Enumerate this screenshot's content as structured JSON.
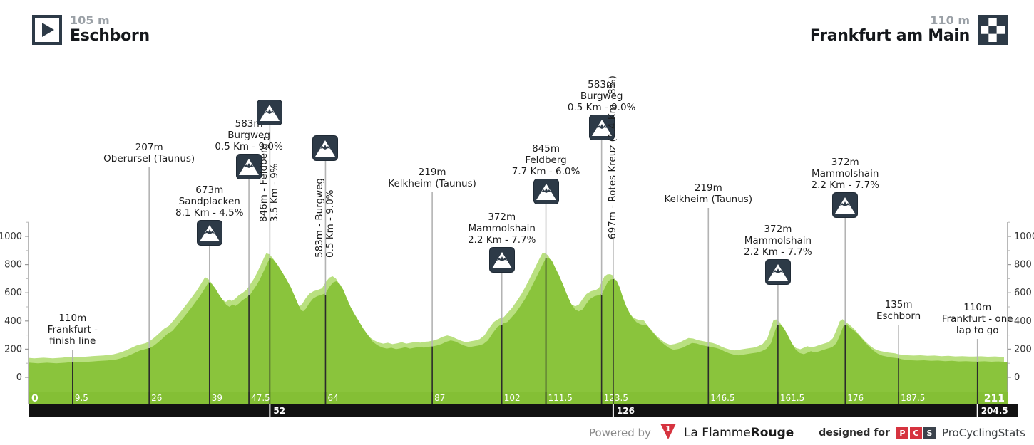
{
  "header": {
    "start": {
      "elevation": "105 m",
      "name": "Eschborn"
    },
    "finish": {
      "elevation": "110 m",
      "name": "Frankfurt am Main"
    }
  },
  "footer": {
    "powered_by": "Powered by",
    "lfr_regular": "La Flamme",
    "lfr_bold": "Rouge",
    "lfr_flag_digit": "1",
    "designed_for": "designed for",
    "pcs_letters": [
      "P",
      "C",
      "S"
    ],
    "pcs_name": "ProCyclingStats"
  },
  "colors": {
    "profile_green": "#8ac43c",
    "profile_light_green": "#b9e080",
    "band_green": "#84bf35",
    "band_black": "#121212",
    "icon_navy": "#2d3a47",
    "marker_gray": "#b3b3b3",
    "marker_dark": "#2b2b2b",
    "axis_gray": "#999999",
    "axis_text": "#333333",
    "accent_red": "#d6333f"
  },
  "chart_data": {
    "type": "area",
    "x_unit": "km",
    "y_unit": "m",
    "xlim": [
      0,
      211
    ],
    "ylim": [
      -100,
      1100
    ],
    "y_ticks": [
      0,
      200,
      400,
      600,
      800,
      1000
    ],
    "x_ticks_km": [
      0,
      9.5,
      26,
      39,
      47.5,
      64,
      87,
      102,
      111.5,
      123.5,
      146.5,
      161.5,
      176,
      187.5,
      211
    ],
    "lap_ticks_km": [
      52,
      126,
      204.5
    ],
    "start_label": "0",
    "end_label": "211",
    "markers": [
      {
        "km": 9.5,
        "type": "passage",
        "elevation": 110,
        "lines": [
          "110m",
          "Frankfurt -",
          "finish line"
        ]
      },
      {
        "km": 26,
        "type": "passage",
        "elevation": 207,
        "lines": [
          "207m",
          "Oberursel (Taunus)"
        ]
      },
      {
        "km": 39,
        "type": "climb",
        "elevation": 673,
        "lines": [
          "673m",
          "Sandplacken",
          "8.1 Km - 4.5%"
        ]
      },
      {
        "km": 47.5,
        "type": "climb",
        "elevation": 583,
        "lines": [
          "583m",
          "Burgweg",
          "0.5 Km - 9.0%"
        ]
      },
      {
        "km": 52,
        "type": "climb",
        "elevation": 846,
        "rotated": true,
        "lines": [
          "846m - Feldberg -",
          "3.5 Km - 9%"
        ]
      },
      {
        "km": 64,
        "type": "climb",
        "elevation": 583,
        "rotated": true,
        "lines": [
          "583m - Burgweg",
          "0.5 Km - 9.0%"
        ]
      },
      {
        "km": 87,
        "type": "passage",
        "elevation": 219,
        "lines": [
          "219m",
          "Kelkheim (Taunus)"
        ]
      },
      {
        "km": 102,
        "type": "climb",
        "elevation": 372,
        "lines": [
          "372m",
          "Mammolshain",
          "2.2 Km - 7.7%"
        ]
      },
      {
        "km": 111.5,
        "type": "climb",
        "elevation": 845,
        "lines": [
          "845m",
          "Feldberg",
          "7.7 Km - 6.0%"
        ]
      },
      {
        "km": 123.5,
        "type": "climb",
        "elevation": 583,
        "lines": [
          "583m",
          "Burgweg",
          "0.5 Km - 9.0%"
        ]
      },
      {
        "km": 126,
        "type": "climb",
        "elevation": 697,
        "rotated": true,
        "no_icon": true,
        "lines": [
          "697m - Rotes Kreuz (1.4 Km - 8%)"
        ]
      },
      {
        "km": 146.5,
        "type": "passage",
        "elevation": 219,
        "lines": [
          "219m",
          "Kelkheim (Taunus)"
        ]
      },
      {
        "km": 161.5,
        "type": "climb",
        "elevation": 372,
        "lines": [
          "372m",
          "Mammolshain",
          "2.2 Km - 7.7%"
        ]
      },
      {
        "km": 176,
        "type": "climb",
        "elevation": 372,
        "lines": [
          "372m",
          "Mammolshain",
          "2.2 Km - 7.7%"
        ]
      },
      {
        "km": 187.5,
        "type": "passage",
        "elevation": 135,
        "lines": [
          "135m",
          "Eschborn"
        ]
      },
      {
        "km": 204.5,
        "type": "passage",
        "elevation": 110,
        "lines": [
          "110m",
          "Frankfurt - one",
          "lap to go"
        ]
      }
    ],
    "profile": [
      [
        0,
        105
      ],
      [
        2,
        100
      ],
      [
        4,
        104
      ],
      [
        6,
        100
      ],
      [
        8,
        104
      ],
      [
        9.5,
        110
      ],
      [
        11,
        107
      ],
      [
        13,
        111
      ],
      [
        15,
        116
      ],
      [
        17,
        120
      ],
      [
        19,
        128
      ],
      [
        20,
        136
      ],
      [
        21,
        146
      ],
      [
        22,
        160
      ],
      [
        23,
        175
      ],
      [
        24,
        190
      ],
      [
        25,
        199
      ],
      [
        26,
        207
      ],
      [
        27,
        224
      ],
      [
        28,
        250
      ],
      [
        29,
        280
      ],
      [
        30,
        310
      ],
      [
        31,
        330
      ],
      [
        32,
        368
      ],
      [
        33,
        408
      ],
      [
        34,
        448
      ],
      [
        35,
        490
      ],
      [
        36,
        535
      ],
      [
        37,
        580
      ],
      [
        38,
        632
      ],
      [
        38.8,
        676
      ],
      [
        39.5,
        662
      ],
      [
        40.2,
        634
      ],
      [
        41,
        590
      ],
      [
        41.8,
        552
      ],
      [
        42.6,
        515
      ],
      [
        43.3,
        500
      ],
      [
        44,
        516
      ],
      [
        44.6,
        506
      ],
      [
        45.3,
        522
      ],
      [
        46,
        545
      ],
      [
        47,
        566
      ],
      [
        47.8,
        588
      ],
      [
        48.5,
        622
      ],
      [
        49.3,
        662
      ],
      [
        50,
        706
      ],
      [
        50.8,
        762
      ],
      [
        51.5,
        812
      ],
      [
        52,
        845
      ],
      [
        52.7,
        838
      ],
      [
        53.5,
        806
      ],
      [
        54.5,
        756
      ],
      [
        55.5,
        700
      ],
      [
        56.5,
        640
      ],
      [
        57.3,
        580
      ],
      [
        58,
        526
      ],
      [
        58.7,
        478
      ],
      [
        59.2,
        468
      ],
      [
        59.8,
        488
      ],
      [
        60.5,
        526
      ],
      [
        61.3,
        558
      ],
      [
        62.2,
        576
      ],
      [
        63.2,
        586
      ],
      [
        64,
        596
      ],
      [
        64.8,
        640
      ],
      [
        65.6,
        672
      ],
      [
        66.3,
        682
      ],
      [
        67,
        666
      ],
      [
        67.8,
        622
      ],
      [
        68.6,
        560
      ],
      [
        69.4,
        500
      ],
      [
        70.2,
        452
      ],
      [
        71.2,
        398
      ],
      [
        72.2,
        342
      ],
      [
        73.2,
        298
      ],
      [
        74.2,
        252
      ],
      [
        75.2,
        228
      ],
      [
        76.2,
        212
      ],
      [
        77.2,
        204
      ],
      [
        78.2,
        210
      ],
      [
        79.2,
        200
      ],
      [
        80.2,
        206
      ],
      [
        81.2,
        214
      ],
      [
        82.2,
        204
      ],
      [
        83.2,
        210
      ],
      [
        84.2,
        216
      ],
      [
        85.2,
        211
      ],
      [
        86.2,
        217
      ],
      [
        87,
        219
      ],
      [
        88,
        226
      ],
      [
        89,
        236
      ],
      [
        90,
        252
      ],
      [
        91,
        262
      ],
      [
        92,
        254
      ],
      [
        93,
        238
      ],
      [
        94,
        224
      ],
      [
        95,
        214
      ],
      [
        96,
        220
      ],
      [
        97,
        226
      ],
      [
        98,
        236
      ],
      [
        99,
        262
      ],
      [
        100,
        312
      ],
      [
        101,
        356
      ],
      [
        101.7,
        372
      ],
      [
        102.5,
        386
      ],
      [
        103.2,
        392
      ],
      [
        104,
        422
      ],
      [
        105,
        458
      ],
      [
        106,
        506
      ],
      [
        107,
        556
      ],
      [
        108,
        616
      ],
      [
        109,
        682
      ],
      [
        110,
        748
      ],
      [
        110.8,
        802
      ],
      [
        111.5,
        845
      ],
      [
        112.1,
        846
      ],
      [
        112.8,
        828
      ],
      [
        113.5,
        778
      ],
      [
        114.3,
        726
      ],
      [
        115.2,
        658
      ],
      [
        116.1,
        582
      ],
      [
        117,
        518
      ],
      [
        117.8,
        482
      ],
      [
        118.6,
        468
      ],
      [
        119.4,
        482
      ],
      [
        120.2,
        522
      ],
      [
        121,
        556
      ],
      [
        122,
        576
      ],
      [
        123,
        584
      ],
      [
        123.7,
        598
      ],
      [
        124.3,
        642
      ],
      [
        124.9,
        682
      ],
      [
        125.5,
        695
      ],
      [
        126.1,
        697
      ],
      [
        126.7,
        688
      ],
      [
        127.4,
        638
      ],
      [
        128.1,
        565
      ],
      [
        128.8,
        505
      ],
      [
        129.5,
        458
      ],
      [
        130.2,
        422
      ],
      [
        131,
        392
      ],
      [
        131.8,
        378
      ],
      [
        132.6,
        370
      ],
      [
        133.4,
        368
      ],
      [
        134.2,
        330
      ],
      [
        135,
        302
      ],
      [
        136,
        262
      ],
      [
        137,
        234
      ],
      [
        138,
        209
      ],
      [
        139,
        196
      ],
      [
        140,
        201
      ],
      [
        141,
        211
      ],
      [
        142,
        228
      ],
      [
        143,
        244
      ],
      [
        144,
        240
      ],
      [
        145,
        229
      ],
      [
        146.5,
        219
      ],
      [
        147.3,
        214
      ],
      [
        148.2,
        208
      ],
      [
        149.1,
        199
      ],
      [
        150,
        184
      ],
      [
        151,
        170
      ],
      [
        152,
        161
      ],
      [
        153,
        156
      ],
      [
        154,
        161
      ],
      [
        155,
        166
      ],
      [
        156,
        171
      ],
      [
        157,
        176
      ],
      [
        158,
        186
      ],
      [
        159,
        202
      ],
      [
        160,
        242
      ],
      [
        160.7,
        312
      ],
      [
        161.3,
        370
      ],
      [
        161.9,
        376
      ],
      [
        162.6,
        358
      ],
      [
        163.5,
        308
      ],
      [
        164.4,
        248
      ],
      [
        165.3,
        198
      ],
      [
        166.2,
        172
      ],
      [
        167.1,
        164
      ],
      [
        167.9,
        176
      ],
      [
        168.6,
        186
      ],
      [
        169.4,
        177
      ],
      [
        170.3,
        184
      ],
      [
        171.2,
        194
      ],
      [
        172.2,
        204
      ],
      [
        173.2,
        214
      ],
      [
        174.1,
        242
      ],
      [
        174.9,
        302
      ],
      [
        175.6,
        362
      ],
      [
        176.2,
        378
      ],
      [
        177,
        354
      ],
      [
        178,
        329
      ],
      [
        179,
        298
      ],
      [
        180,
        258
      ],
      [
        181,
        222
      ],
      [
        182,
        192
      ],
      [
        183,
        168
      ],
      [
        184,
        154
      ],
      [
        185,
        147
      ],
      [
        186,
        141
      ],
      [
        187.5,
        135
      ],
      [
        188.2,
        129
      ],
      [
        189.2,
        124
      ],
      [
        190.2,
        121
      ],
      [
        191.5,
        119
      ],
      [
        193,
        121
      ],
      [
        194.5,
        117
      ],
      [
        196,
        119
      ],
      [
        197.5,
        115
      ],
      [
        199,
        117
      ],
      [
        200.5,
        113
      ],
      [
        202,
        115
      ],
      [
        203.5,
        112
      ],
      [
        204.5,
        112
      ],
      [
        206,
        114
      ],
      [
        207.5,
        111
      ],
      [
        209,
        113
      ],
      [
        210,
        111
      ],
      [
        211,
        110
      ]
    ]
  }
}
